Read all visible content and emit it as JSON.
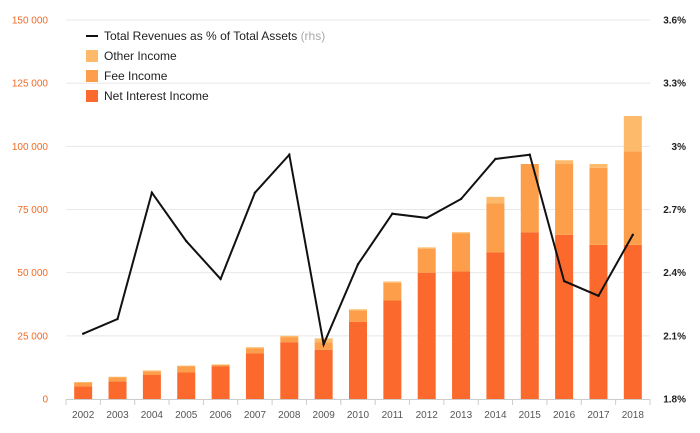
{
  "chart_data": {
    "type": "bar",
    "stacked": true,
    "categories": [
      "2002",
      "2003",
      "2004",
      "2005",
      "2006",
      "2007",
      "2008",
      "2009",
      "2010",
      "2011",
      "2012",
      "2013",
      "2014",
      "2015",
      "2016",
      "2017",
      "2018"
    ],
    "series": [
      {
        "name": "Net Interest Income",
        "color": "#fb6a2c",
        "values": [
          5000,
          7000,
          9500,
          10500,
          13000,
          18000,
          22500,
          19500,
          30500,
          39000,
          50000,
          50500,
          58000,
          66000,
          65000,
          61000,
          61000
        ]
      },
      {
        "name": "Fee Income",
        "color": "#fd9e4a",
        "values": [
          1500,
          1500,
          1500,
          2500,
          500,
          2000,
          2000,
          3000,
          4500,
          7000,
          9500,
          15000,
          19500,
          27000,
          28000,
          30500,
          37000
        ]
      },
      {
        "name": "Other Income",
        "color": "#fdba6b",
        "values": [
          200,
          300,
          300,
          200,
          200,
          500,
          500,
          1500,
          500,
          500,
          500,
          500,
          2500,
          0,
          1500,
          1500,
          14000
        ]
      }
    ],
    "line": {
      "name": "Total Revenues as % of Total Assets",
      "note": "(rhs)",
      "color": "#111111",
      "axis": "right",
      "values": [
        2.11,
        2.18,
        2.78,
        2.55,
        2.37,
        2.78,
        2.96,
        2.06,
        2.44,
        2.68,
        2.66,
        2.75,
        2.94,
        2.96,
        2.36,
        2.29,
        2.58
      ]
    },
    "y_left": {
      "ylim": [
        0,
        150000
      ],
      "ticks": [
        0,
        25000,
        50000,
        75000,
        100000,
        125000,
        150000
      ],
      "tick_labels": [
        "0",
        "25 000",
        "50 000",
        "75 000",
        "100 000",
        "125 000",
        "150 000"
      ],
      "color": "#f06a25"
    },
    "y_right": {
      "ylim": [
        1.8,
        3.6
      ],
      "ticks": [
        1.8,
        2.1,
        2.4,
        2.7,
        3.0,
        3.3,
        3.6
      ],
      "tick_labels": [
        "1.8%",
        "2.1%",
        "2.4%",
        "2.7%",
        "3%",
        "3.3%",
        "3.6%"
      ],
      "color": "#222222"
    },
    "grid": true,
    "legend_position": "top-left",
    "legend_order": [
      "Total Revenues as % of Total Assets",
      "Other Income",
      "Fee Income",
      "Net Interest Income"
    ],
    "title": "",
    "xlabel": "",
    "ylabel": ""
  }
}
